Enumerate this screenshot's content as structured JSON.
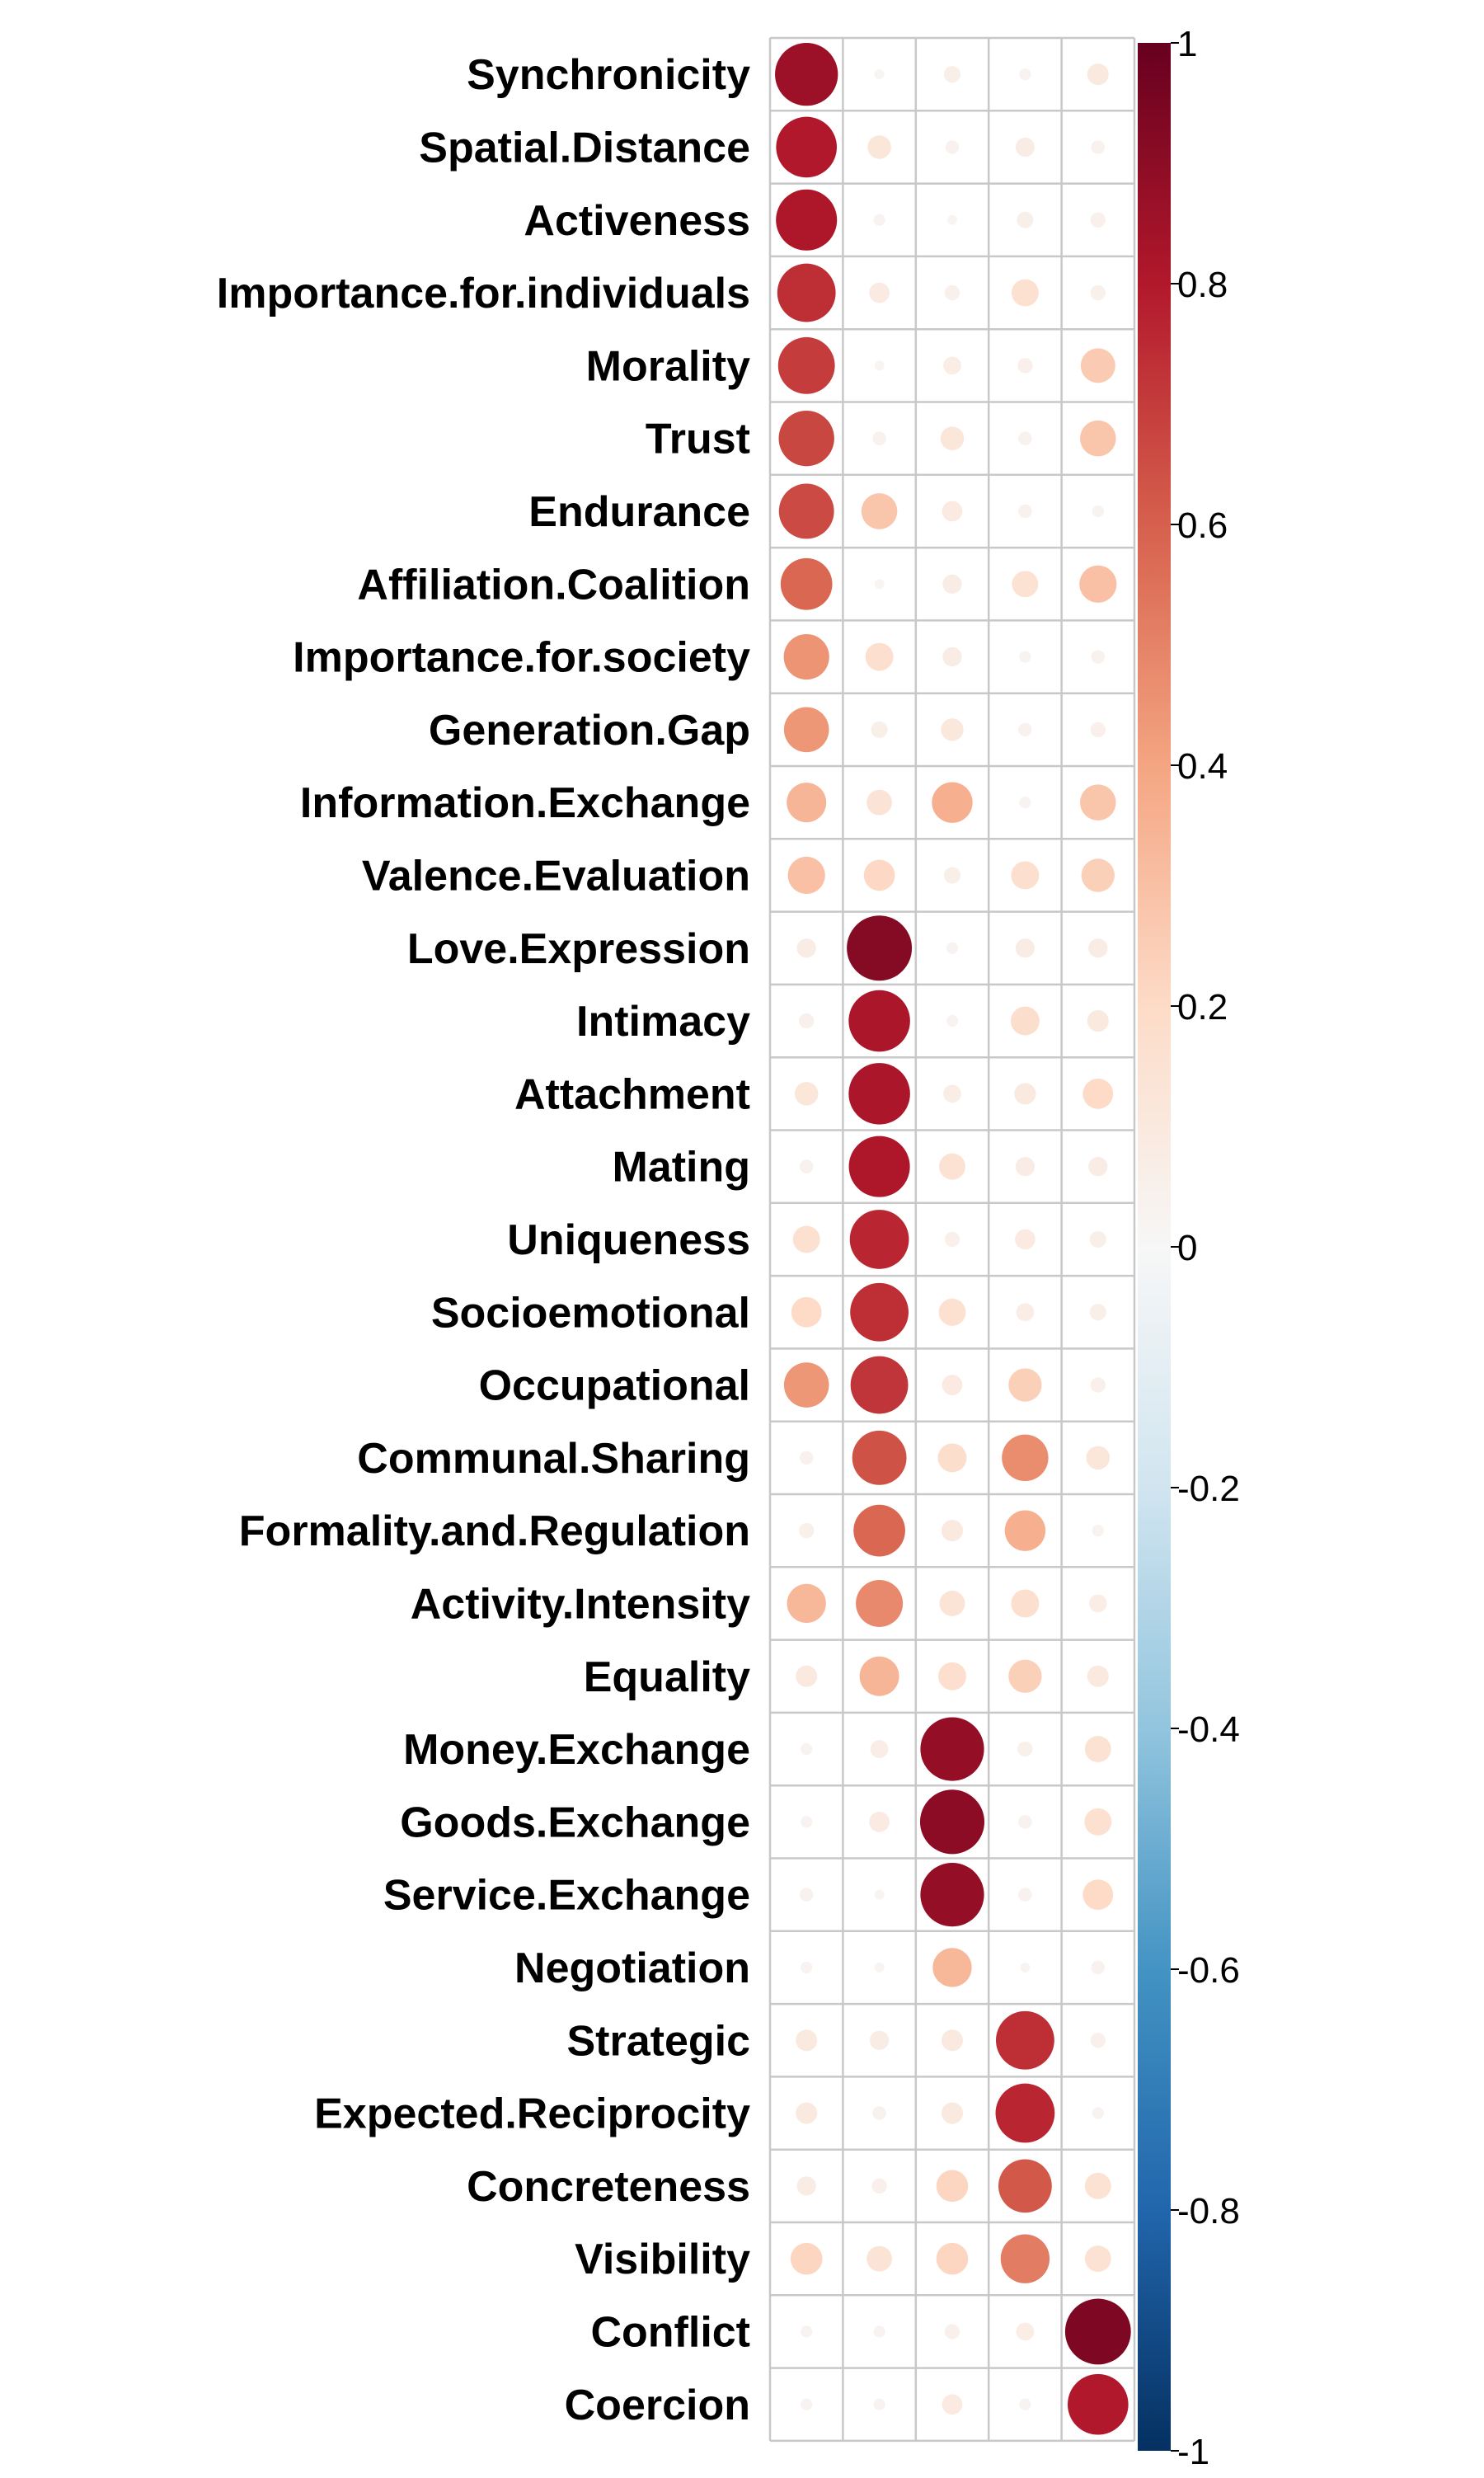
{
  "chart_data": {
    "type": "heatmap",
    "subtype": "correlation-circle-plot",
    "rows": [
      "Synchronicity",
      "Spatial.Distance",
      "Activeness",
      "Importance.for.individuals",
      "Morality",
      "Trust",
      "Endurance",
      "Affiliation.Coalition",
      "Importance.for.society",
      "Generation.Gap",
      "Information.Exchange",
      "Valence.Evaluation",
      "Love.Expression",
      "Intimacy",
      "Attachment",
      "Mating",
      "Uniqueness",
      "Socioemotional",
      "Occupational",
      "Communal.Sharing",
      "Formality.and.Regulation",
      "Activity.Intensity",
      "Equality",
      "Money.Exchange",
      "Goods.Exchange",
      "Service.Exchange",
      "Negotiation",
      "Strategic",
      "Expected.Reciprocity",
      "Concreteness",
      "Visibility",
      "Conflict",
      "Coercion"
    ],
    "columns": [
      "",
      "",
      "",
      "",
      ""
    ],
    "values": [
      [
        0.86,
        0.02,
        0.06,
        0.03,
        0.1
      ],
      [
        0.8,
        0.12,
        0.04,
        0.08,
        0.04
      ],
      [
        0.81,
        0.03,
        0.02,
        0.06,
        0.05
      ],
      [
        0.74,
        0.09,
        0.05,
        0.16,
        0.05
      ],
      [
        0.7,
        0.02,
        0.07,
        0.05,
        0.26
      ],
      [
        0.67,
        0.04,
        0.12,
        0.04,
        0.28
      ],
      [
        0.66,
        0.28,
        0.09,
        0.04,
        0.03
      ],
      [
        0.58,
        0.02,
        0.08,
        0.15,
        0.3
      ],
      [
        0.45,
        0.17,
        0.08,
        0.03,
        0.04
      ],
      [
        0.44,
        0.06,
        0.11,
        0.04,
        0.05
      ],
      [
        0.34,
        0.14,
        0.36,
        0.03,
        0.28
      ],
      [
        0.3,
        0.21,
        0.06,
        0.17,
        0.24
      ],
      [
        0.08,
        0.92,
        0.03,
        0.08,
        0.08
      ],
      [
        0.05,
        0.82,
        0.03,
        0.18,
        0.1
      ],
      [
        0.12,
        0.82,
        0.07,
        0.1,
        0.2
      ],
      [
        0.04,
        0.81,
        0.15,
        0.08,
        0.08
      ],
      [
        0.16,
        0.76,
        0.05,
        0.09,
        0.06
      ],
      [
        0.2,
        0.74,
        0.16,
        0.07,
        0.06
      ],
      [
        0.44,
        0.72,
        0.09,
        0.24,
        0.05
      ],
      [
        0.04,
        0.64,
        0.18,
        0.47,
        0.12
      ],
      [
        0.05,
        0.58,
        0.1,
        0.36,
        0.03
      ],
      [
        0.33,
        0.48,
        0.14,
        0.17,
        0.07
      ],
      [
        0.1,
        0.34,
        0.17,
        0.24,
        0.1
      ],
      [
        0.03,
        0.07,
        0.88,
        0.05,
        0.15
      ],
      [
        0.03,
        0.09,
        0.9,
        0.04,
        0.16
      ],
      [
        0.04,
        0.02,
        0.88,
        0.04,
        0.2
      ],
      [
        0.03,
        0.02,
        0.33,
        0.02,
        0.04
      ],
      [
        0.1,
        0.08,
        0.1,
        0.74,
        0.05
      ],
      [
        0.1,
        0.04,
        0.1,
        0.76,
        0.03
      ],
      [
        0.08,
        0.05,
        0.22,
        0.62,
        0.15
      ],
      [
        0.22,
        0.14,
        0.22,
        0.52,
        0.15
      ],
      [
        0.03,
        0.03,
        0.05,
        0.07,
        0.94
      ],
      [
        0.03,
        0.03,
        0.09,
        0.03,
        0.8
      ]
    ],
    "colorbar": {
      "ticks": [
        "1",
        "0.8",
        "0.6",
        "0.4",
        "0.2",
        "0",
        "-0.2",
        "-0.4",
        "-0.6",
        "-0.8",
        "-1"
      ],
      "range": [
        -1,
        1
      ],
      "colors": [
        "#053061",
        "#2166AC",
        "#4393C3",
        "#92C5DE",
        "#D1E5F0",
        "#F7F7F7",
        "#FDDBC7",
        "#F4A582",
        "#D6604D",
        "#B2182B",
        "#67001F"
      ]
    },
    "grid": true
  }
}
